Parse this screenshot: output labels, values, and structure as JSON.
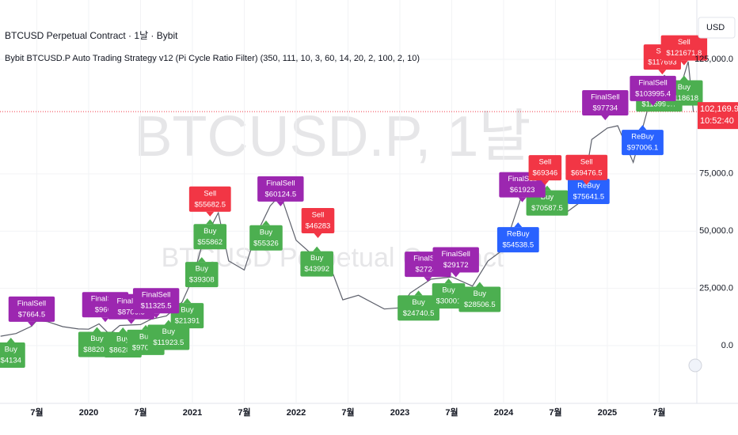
{
  "chart_data": {
    "type": "line",
    "title": "BTCUSD Perpetual Contract · 1날 · Bybit",
    "subtitle": "Bybit BTCUSD.P Auto Trading Strategy v12 (Pi Cycle Ratio Filter) (350, 111, 10, 3, 60, 14, 20, 2, 100, 2, 10)",
    "watermark": "BTCUSD.P, 1날",
    "watermark_subtitle": "BTCUSD Perpetual Contract",
    "currency": "USD",
    "last_price": 102169.9,
    "last_price_label": "102,169.9",
    "clock": "10:52:40",
    "last_price_color": "#f23645",
    "grid": true,
    "xlim": [
      2019.145,
      2025.863
    ],
    "ylim": [
      -25200,
      150900
    ],
    "xticks": [
      {
        "value": 2019.5,
        "label": "7월"
      },
      2020,
      {
        "value": 2020.5,
        "label": "7월"
      },
      2021,
      {
        "value": 2021.5,
        "label": "7월"
      },
      2022,
      {
        "value": 2022.5,
        "label": "7월"
      },
      2023,
      {
        "value": 2023.5,
        "label": "7월"
      },
      2024,
      {
        "value": 2024.5,
        "label": "7월"
      },
      2025,
      {
        "value": 2025.5,
        "label": "7월"
      }
    ],
    "yticks": [
      {
        "value": 0,
        "label": "0.0"
      },
      {
        "value": 25000,
        "label": "25,000.0"
      },
      {
        "value": 50000,
        "label": "50,000.0"
      },
      {
        "value": 75000,
        "label": "75,000.0"
      },
      {
        "value": 125000,
        "label": "125,000.0"
      }
    ],
    "series": [
      {
        "name": "BTCUSD.P",
        "color": "#5d606b",
        "x": [
          2019.15,
          2019.3,
          2019.45,
          2019.5,
          2019.6,
          2019.75,
          2019.9,
          2020.0,
          2020.1,
          2020.2,
          2020.3,
          2020.5,
          2020.6,
          2020.75,
          2020.9,
          2021.0,
          2021.1,
          2021.25,
          2021.35,
          2021.5,
          2021.6,
          2021.75,
          2021.85,
          2022.0,
          2022.15,
          2022.3,
          2022.45,
          2022.6,
          2022.85,
          2023.0,
          2023.1,
          2023.3,
          2023.5,
          2023.7,
          2023.85,
          2024.0,
          2024.15,
          2024.2,
          2024.45,
          2024.6,
          2024.75,
          2024.85,
          2025.0,
          2025.1,
          2025.25,
          2025.4,
          2025.55,
          2025.7,
          2025.78,
          2025.83
        ],
        "values": [
          4100,
          5300,
          8500,
          11000,
          10500,
          8300,
          7300,
          7200,
          9500,
          5000,
          8800,
          9200,
          11500,
          13000,
          19000,
          29000,
          45000,
          58000,
          37000,
          33000,
          47000,
          61000,
          66000,
          46000,
          40000,
          38000,
          20000,
          22000,
          16000,
          16500,
          23000,
          29000,
          30000,
          26000,
          37000,
          42000,
          62000,
          70000,
          67000,
          58000,
          63000,
          90000,
          95000,
          96000,
          80000,
          105000,
          118000,
          112000,
          124000,
          102000
        ]
      }
    ],
    "signals": {
      "entries": [
        {
          "text": "Buy",
          "x": 2019.25,
          "value": 4134,
          "value_label": "$4134",
          "color": "#4caf50"
        },
        {
          "text": "Buy",
          "x": 2020.08,
          "value": 8820.5,
          "value_label": "$8820.5",
          "color": "#4caf50"
        },
        {
          "text": "Buy",
          "x": 2020.33,
          "value": 8628.5,
          "value_label": "$8628.5",
          "color": "#4caf50"
        },
        {
          "text": "Buy",
          "x": 2020.55,
          "value": 9708.5,
          "value_label": "$9708.5",
          "color": "#4caf50"
        },
        {
          "text": "Buy",
          "x": 2020.77,
          "value": 11923.5,
          "value_label": "$11923.5",
          "color": "#4caf50"
        },
        {
          "text": "Buy",
          "x": 2020.95,
          "value": 21391,
          "value_label": "$21391",
          "color": "#4caf50"
        },
        {
          "text": "Buy",
          "x": 2021.09,
          "value": 39308,
          "value_label": "$39308",
          "color": "#4caf50"
        },
        {
          "text": "Buy",
          "x": 2021.17,
          "value": 55862,
          "value_label": "$55862",
          "color": "#4caf50"
        },
        {
          "text": "Buy",
          "x": 2021.71,
          "value": 55326,
          "value_label": "$55326",
          "color": "#4caf50"
        },
        {
          "text": "Buy",
          "x": 2022.2,
          "value": 43992,
          "value_label": "$43992",
          "color": "#4caf50"
        },
        {
          "text": "Buy",
          "x": 2023.18,
          "value": 24740.5,
          "value_label": "$24740.5",
          "color": "#4caf50"
        },
        {
          "text": "Buy",
          "x": 2023.47,
          "value": 30001,
          "value_label": "$30001",
          "color": "#4caf50"
        },
        {
          "text": "Buy",
          "x": 2023.77,
          "value": 28506.5,
          "value_label": "$28506.5",
          "color": "#4caf50"
        },
        {
          "text": "ReBuy",
          "x": 2024.14,
          "value": 54538.5,
          "value_label": "$54538.5",
          "color": "#2962ff"
        },
        {
          "text": "Buy",
          "x": 2024.42,
          "value": 70587.5,
          "value_label": "$70587.5",
          "color": "#4caf50"
        },
        {
          "text": "ReBuy",
          "x": 2024.82,
          "value": 75641.5,
          "value_label": "$75641.5",
          "color": "#2962ff"
        },
        {
          "text": "ReBuy",
          "x": 2025.34,
          "value": 97006.1,
          "value_label": "$97006.1",
          "color": "#2962ff"
        },
        {
          "text": "Buy",
          "x": 2025.5,
          "value": 115990.7,
          "value_label": "$115990.7",
          "color": "#4caf50"
        },
        {
          "text": "Buy",
          "x": 2025.74,
          "value": 118618,
          "value_label": "$118618",
          "color": "#4caf50"
        }
      ],
      "exits": [
        {
          "text": "FinalSell",
          "x": 2019.45,
          "value": 7664.5,
          "value_label": "$7664.5",
          "color": "#9c27b0"
        },
        {
          "text": "FinalSell",
          "x": 2020.16,
          "value": 9602,
          "value_label": "$9602",
          "color": "#9c27b0"
        },
        {
          "text": "FinalSell",
          "x": 2020.41,
          "value": 8706.5,
          "value_label": "$8706.5",
          "color": "#9c27b0"
        },
        {
          "text": "FinalSell",
          "x": 2020.65,
          "value": 11325.5,
          "value_label": "$11325.5",
          "color": "#9c27b0"
        },
        {
          "text": "Sell",
          "x": 2021.17,
          "value": 55682.5,
          "value_label": "$55682.5",
          "color": "#f23645"
        },
        {
          "text": "FinalSell",
          "x": 2021.85,
          "value": 60124.5,
          "value_label": "$60124.5",
          "color": "#9c27b0"
        },
        {
          "text": "Sell",
          "x": 2022.21,
          "value": 46283,
          "value_label": "$46283",
          "color": "#f23645"
        },
        {
          "text": "FinalSell",
          "x": 2023.27,
          "value": 27249,
          "value_label": "$27249",
          "color": "#9c27b0"
        },
        {
          "text": "FinalSell",
          "x": 2023.54,
          "value": 29172,
          "value_label": "$29172",
          "color": "#9c27b0"
        },
        {
          "text": "FinalSell",
          "x": 2024.18,
          "value": 61923,
          "value_label": "$61923",
          "color": "#9c27b0"
        },
        {
          "text": "Sell",
          "x": 2024.4,
          "value": 69346,
          "value_label": "$69346",
          "color": "#f23645"
        },
        {
          "text": "Sell",
          "x": 2024.8,
          "value": 69476.5,
          "value_label": "$69476.5",
          "color": "#f23645"
        },
        {
          "text": "FinalSell",
          "x": 2024.98,
          "value": 97734,
          "value_label": "$97734",
          "color": "#9c27b0"
        },
        {
          "text": "FinalSell",
          "x": 2025.44,
          "value": 103995.4,
          "value_label": "$103995.4",
          "color": "#9c27b0"
        },
        {
          "text": "Sell",
          "x": 2025.53,
          "value": 117693,
          "value_label": "$117693",
          "color": "#f23645"
        },
        {
          "text": "Sell",
          "x": 2025.74,
          "value": 121671.8,
          "value_label": "$121671.8",
          "color": "#f23645"
        }
      ]
    }
  }
}
